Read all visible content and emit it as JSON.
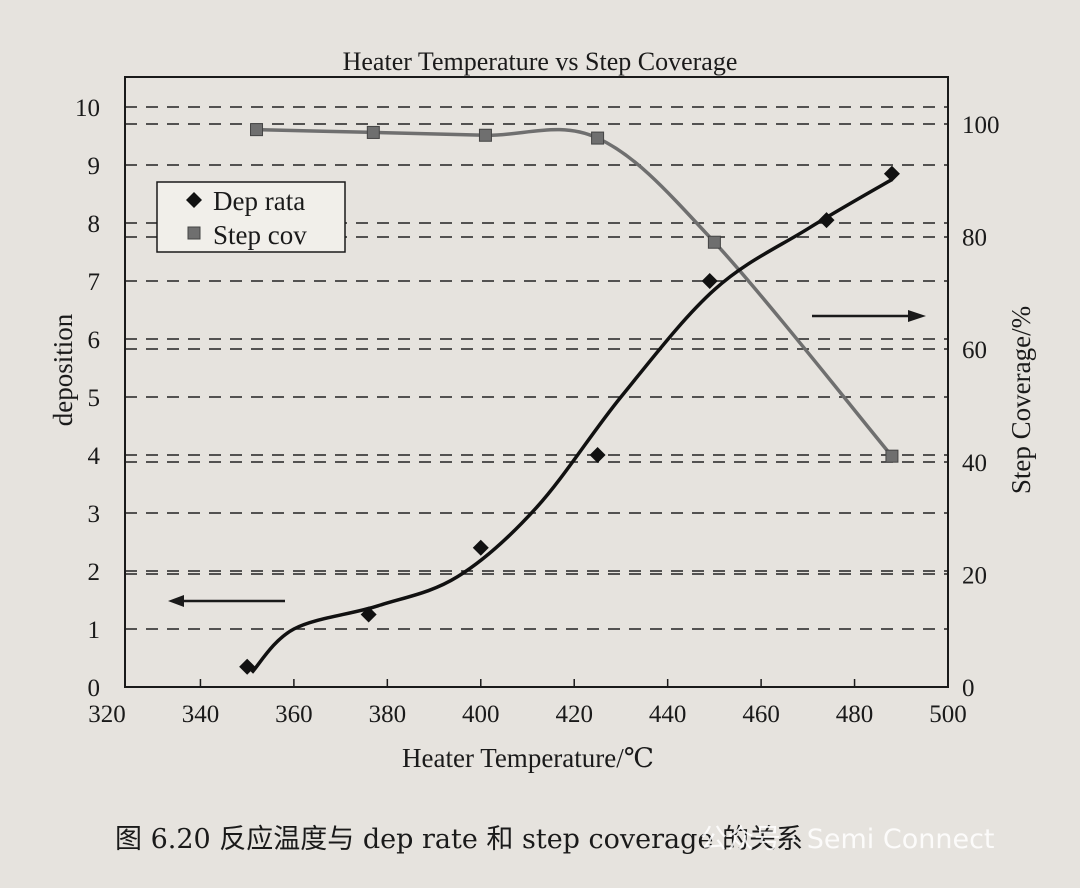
{
  "chart_data": {
    "type": "line",
    "title": "Heater Temperature vs Step Coverage",
    "xlabel": "Heater Temperature/℃",
    "ylabel": "deposition",
    "y2label": "Step Coverage/%",
    "xlim": [
      320,
      500
    ],
    "ylim": [
      0,
      10
    ],
    "y2lim": [
      0,
      100
    ],
    "x_ticks": [
      320,
      340,
      360,
      380,
      400,
      420,
      440,
      460,
      480,
      500
    ],
    "y_ticks": [
      0,
      1,
      2,
      3,
      4,
      5,
      6,
      7,
      8,
      9,
      10
    ],
    "y2_ticks": [
      0,
      20,
      40,
      60,
      80,
      100
    ],
    "grid": "horizontal dashed",
    "legend_position": "top-left",
    "series": [
      {
        "name": "Dep rata",
        "axis": "left",
        "marker": "diamond",
        "x": [
          350,
          376,
          400,
          425,
          449,
          474,
          488
        ],
        "y": [
          0.35,
          1.25,
          2.4,
          4.0,
          7.0,
          8.05,
          8.85
        ]
      },
      {
        "name": "Step cov",
        "axis": "right",
        "marker": "square",
        "x": [
          352,
          377,
          401,
          425,
          450,
          488
        ],
        "y": [
          99,
          98.5,
          98,
          97.5,
          79,
          41
        ]
      }
    ],
    "annotations": [
      "← deposition axis",
      "Step Coverage axis →"
    ]
  },
  "caption": "图 6.20   反应温度与 dep rate 和 step coverage 的关系",
  "watermark": "公众号 · Semi Connect",
  "colors": {
    "background": "#e6e3de",
    "dep_series": "#111111",
    "step_series": "#6f6f6f",
    "grid": "#222222"
  }
}
